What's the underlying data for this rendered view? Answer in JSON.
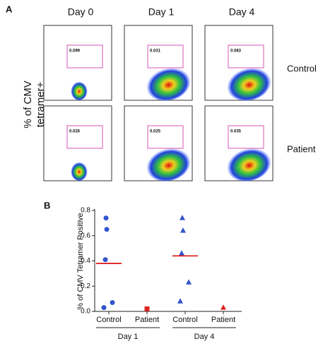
{
  "panel_a": {
    "label": "A",
    "y_label": [
      "% of CMV",
      "tetramer+"
    ],
    "columns": [
      "Day 0",
      "Day 1",
      "Day 4"
    ],
    "rows": [
      {
        "name": "Control",
        "gates": [
          "0.099",
          "0.031",
          "0.083"
        ]
      },
      {
        "name": "Patient",
        "gates": [
          "0.026",
          "0.025",
          "0.035"
        ]
      }
    ]
  },
  "chart_data": {
    "type": "scatter",
    "panel_label": "B",
    "y_label": "% of CMV Tetramer Positive",
    "categories": [
      "Control",
      "Patient",
      "Control",
      "Patient"
    ],
    "groups": [
      "Day 1",
      "Day 4"
    ],
    "values": [
      [
        0.74,
        0.65,
        0.41,
        0.07,
        0.03
      ],
      [
        0.02
      ],
      [
        0.74,
        0.64,
        0.46,
        0.23,
        0.08
      ],
      [
        0.03
      ]
    ],
    "markers": [
      "circle",
      "square",
      "triangle",
      "triangle"
    ],
    "colors": [
      "#3355cc",
      "#dd2222",
      "#3355cc",
      "#dd2222"
    ],
    "means": [
      0.38,
      null,
      0.44,
      null
    ],
    "mean_color": "#dd2222",
    "ylim": [
      0,
      0.8
    ],
    "yticks": [
      {
        "value": 0,
        "label": "0.0"
      },
      0.2,
      0.4,
      0.6,
      0.8
    ]
  }
}
